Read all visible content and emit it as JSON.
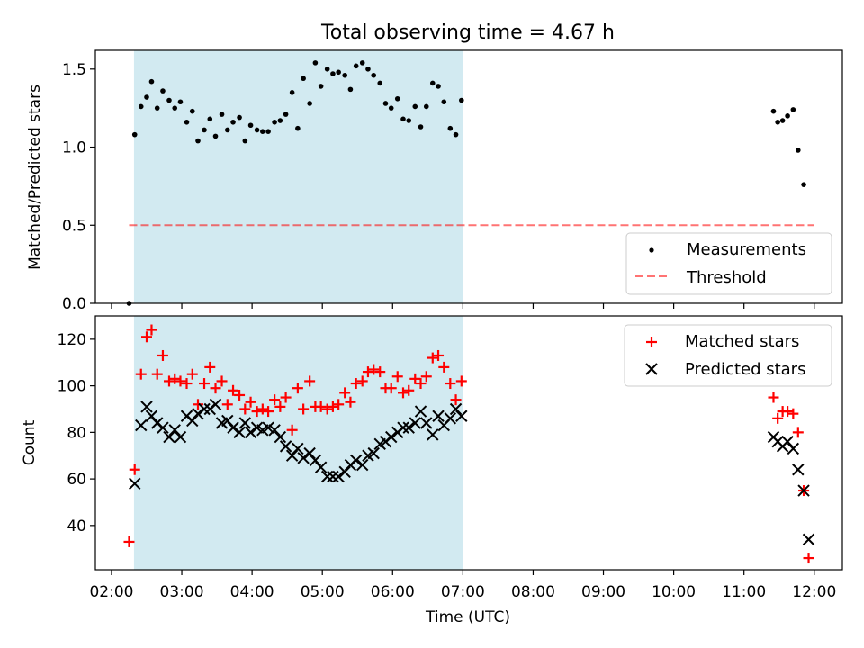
{
  "figure": {
    "title": "Total observing time = 4.67 h",
    "xlabel": "Time (UTC)",
    "x_ticks": [
      "02:00",
      "03:00",
      "04:00",
      "05:00",
      "06:00",
      "07:00",
      "08:00",
      "09:00",
      "10:00",
      "11:00",
      "12:00"
    ],
    "x_tick_hours": [
      2,
      3,
      4,
      5,
      6,
      7,
      8,
      9,
      10,
      11,
      12
    ],
    "xlim_hours": [
      1.77,
      12.4
    ],
    "observing_window_hours": [
      2.32,
      7.0
    ],
    "colors": {
      "window": "#add8e6",
      "threshold": "#ff0000",
      "measurements": "#000000",
      "matched": "#ff0000",
      "predicted": "#000000"
    }
  },
  "chart_data": [
    {
      "type": "scatter",
      "ylabel": "Matched/Predicted stars",
      "ylim": [
        0,
        1.62
      ],
      "yticks": [
        "0.0",
        "0.5",
        "1.0",
        "1.5"
      ],
      "ytick_values": [
        0,
        0.5,
        1.0,
        1.5
      ],
      "legend_position": "lower right",
      "series": [
        {
          "name": "Measurements",
          "x_hours": [
            2.25,
            2.33,
            2.42,
            2.5,
            2.57,
            2.65,
            2.73,
            2.82,
            2.9,
            2.98,
            3.07,
            3.15,
            3.23,
            3.32,
            3.4,
            3.48,
            3.57,
            3.65,
            3.73,
            3.82,
            3.9,
            3.98,
            4.07,
            4.15,
            4.23,
            4.32,
            4.4,
            4.48,
            4.57,
            4.65,
            4.73,
            4.82,
            4.9,
            4.98,
            5.07,
            5.15,
            5.23,
            5.32,
            5.4,
            5.48,
            5.57,
            5.65,
            5.73,
            5.82,
            5.9,
            5.98,
            6.07,
            6.15,
            6.23,
            6.32,
            6.4,
            6.48,
            6.57,
            6.65,
            6.73,
            6.82,
            6.9,
            6.98,
            11.42,
            11.48,
            11.55,
            11.62,
            11.7,
            11.77,
            11.85
          ],
          "y": [
            0.0,
            1.08,
            1.26,
            1.32,
            1.42,
            1.25,
            1.36,
            1.3,
            1.25,
            1.29,
            1.16,
            1.23,
            1.04,
            1.11,
            1.18,
            1.07,
            1.21,
            1.11,
            1.16,
            1.19,
            1.04,
            1.14,
            1.11,
            1.1,
            1.1,
            1.16,
            1.17,
            1.21,
            1.35,
            1.12,
            1.44,
            1.28,
            1.54,
            1.39,
            1.5,
            1.47,
            1.48,
            1.46,
            1.37,
            1.52,
            1.54,
            1.5,
            1.46,
            1.41,
            1.28,
            1.25,
            1.31,
            1.18,
            1.17,
            1.26,
            1.13,
            1.26,
            1.41,
            1.39,
            1.29,
            1.12,
            1.08,
            1.3,
            1.23,
            1.16,
            1.17,
            1.2,
            1.24,
            0.98,
            0.76
          ]
        },
        {
          "name": "Threshold",
          "x_hours": [
            2.25,
            12.0
          ],
          "y": [
            0.5,
            0.5
          ]
        }
      ]
    },
    {
      "type": "scatter",
      "ylabel": "Count",
      "ylim": [
        21,
        130
      ],
      "yticks": [
        "40",
        "60",
        "80",
        "100",
        "120"
      ],
      "ytick_values": [
        40,
        60,
        80,
        100,
        120
      ],
      "legend_position": "upper right",
      "series": [
        {
          "name": "Matched stars",
          "x_hours": [
            2.25,
            2.33,
            2.42,
            2.5,
            2.57,
            2.65,
            2.73,
            2.82,
            2.9,
            2.98,
            3.07,
            3.15,
            3.23,
            3.32,
            3.4,
            3.48,
            3.57,
            3.65,
            3.73,
            3.82,
            3.9,
            3.98,
            4.07,
            4.15,
            4.23,
            4.32,
            4.4,
            4.48,
            4.57,
            4.65,
            4.73,
            4.82,
            4.9,
            4.98,
            5.07,
            5.15,
            5.23,
            5.32,
            5.4,
            5.48,
            5.57,
            5.65,
            5.73,
            5.82,
            5.9,
            5.98,
            6.07,
            6.15,
            6.23,
            6.32,
            6.4,
            6.48,
            6.57,
            6.65,
            6.73,
            6.82,
            6.9,
            6.98,
            11.42,
            11.48,
            11.55,
            11.62,
            11.7,
            11.77,
            11.85,
            11.92
          ],
          "y": [
            33,
            64,
            105,
            121,
            124,
            105,
            113,
            102,
            103,
            102,
            101,
            105,
            92,
            101,
            108,
            99,
            102,
            92,
            98,
            96,
            90,
            93,
            89,
            90,
            89,
            94,
            91,
            95,
            81,
            99,
            90,
            102,
            91,
            91,
            90,
            91,
            92,
            97,
            93,
            101,
            102,
            106,
            107,
            106,
            99,
            99,
            104,
            97,
            98,
            103,
            101,
            104,
            112,
            113,
            108,
            101,
            94,
            102,
            95,
            86,
            89,
            89,
            88,
            80,
            55,
            26
          ]
        },
        {
          "name": "Predicted stars",
          "x_hours": [
            2.33,
            2.42,
            2.5,
            2.57,
            2.65,
            2.73,
            2.82,
            2.9,
            2.98,
            3.07,
            3.15,
            3.23,
            3.32,
            3.4,
            3.48,
            3.57,
            3.65,
            3.73,
            3.82,
            3.9,
            3.98,
            4.07,
            4.15,
            4.23,
            4.32,
            4.4,
            4.48,
            4.57,
            4.65,
            4.73,
            4.82,
            4.9,
            4.98,
            5.07,
            5.15,
            5.23,
            5.32,
            5.4,
            5.48,
            5.57,
            5.65,
            5.73,
            5.82,
            5.9,
            5.98,
            6.07,
            6.15,
            6.23,
            6.32,
            6.4,
            6.48,
            6.57,
            6.65,
            6.73,
            6.82,
            6.9,
            6.98,
            11.42,
            11.48,
            11.55,
            11.62,
            11.7,
            11.77,
            11.85,
            11.92
          ],
          "y": [
            58,
            83,
            91,
            87,
            84,
            82,
            78,
            81,
            78,
            87,
            85,
            88,
            90,
            90,
            92,
            84,
            85,
            82,
            80,
            84,
            80,
            82,
            81,
            82,
            81,
            78,
            74,
            70,
            73,
            69,
            71,
            68,
            65,
            61,
            61,
            61,
            63,
            66,
            68,
            66,
            70,
            71,
            75,
            76,
            78,
            80,
            82,
            82,
            84,
            89,
            84,
            79,
            87,
            83,
            86,
            90,
            87,
            78,
            76,
            74,
            76,
            73,
            64,
            55,
            34
          ]
        }
      ]
    }
  ]
}
